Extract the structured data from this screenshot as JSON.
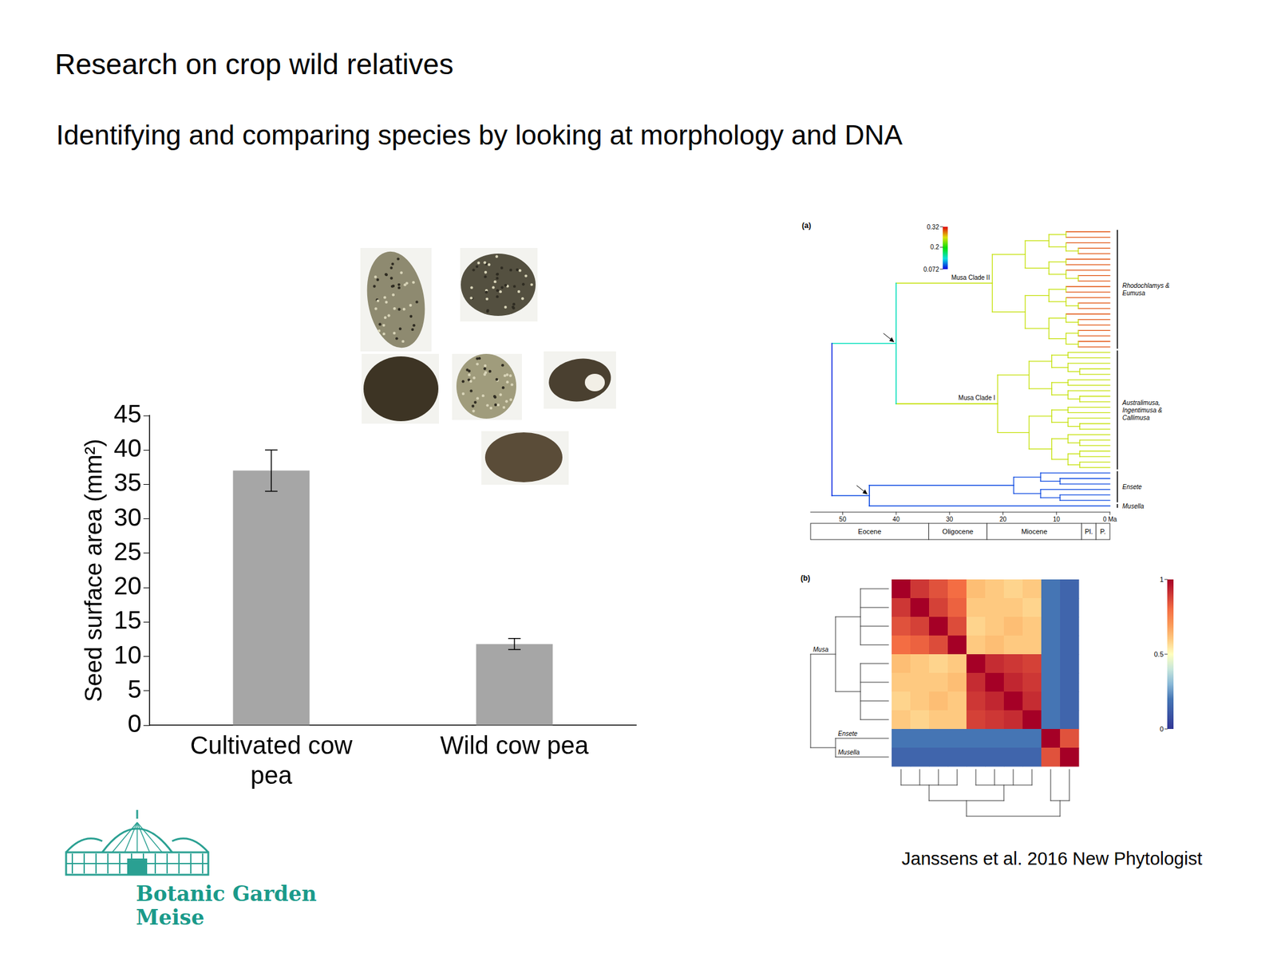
{
  "slide": {
    "title": "Research on crop wild relatives",
    "subtitle": "Identifying and comparing species by looking at morphology and DNA",
    "citation": "Janssens et al. 2016 New Phytologist",
    "logo_text": [
      "Botanic Garden",
      "Meise"
    ]
  },
  "chart_data": {
    "type": "bar",
    "categories": [
      "Cultivated cow pea",
      "Wild cow pea"
    ],
    "values": [
      37,
      11.8
    ],
    "errors": [
      3,
      0.8
    ],
    "color": "#a6a6a6",
    "ylabel": "Seed surface area (mm²)",
    "ylim": [
      0,
      45
    ],
    "yticks": [
      0,
      5,
      10,
      15,
      20,
      25,
      30,
      35,
      40,
      45
    ],
    "grid": false
  },
  "figure": {
    "panel_a": {
      "letter": "(a)",
      "rate_colorbar": {
        "range": [
          0.072,
          0.32
        ],
        "ticks": [
          0.32,
          0.2,
          0.072
        ]
      },
      "time_axis": {
        "xlim": [
          56,
          0
        ],
        "xticks": [
          50,
          40,
          30,
          20,
          10,
          {
            "value": 0,
            "label": "0 Ma"
          }
        ]
      },
      "epochs": [
        {
          "label": "Eocene",
          "start": 56,
          "end": 33.9
        },
        {
          "label": "Oligocene",
          "start": 33.9,
          "end": 23
        },
        {
          "label": "Miocene",
          "start": 23,
          "end": 5.3
        },
        {
          "label": "Pl.",
          "start": 5.3,
          "end": 2.6
        },
        {
          "label": "P.",
          "start": 2.6,
          "end": 0
        }
      ],
      "tree": {
        "age": 52,
        "rate": 0.08,
        "children": [
          {
            "age": 40,
            "rate": 0.144,
            "arrow": true,
            "children": [
              {
                "label": "Musa Clade II",
                "age": 22,
                "rate": 0.25,
                "tip_rate": 0.3,
                "tips": 22,
                "group": "Rhodochlamys & Eumusa"
              },
              {
                "label": "Musa Clade I",
                "age": 21,
                "rate": 0.25,
                "tip_rate": 0.25,
                "tips": 22,
                "group": "Australimusa, Ingentimusa & Callimusa"
              }
            ]
          },
          {
            "age": 45,
            "rate": 0.09,
            "arrow": true,
            "children": [
              {
                "age": 18,
                "rate": 0.09,
                "tip_rate": 0.09,
                "tips": 6,
                "group": "Ensete"
              },
              {
                "age": 0,
                "rate": 0.09,
                "tip_rate": 0.09,
                "tips": 1,
                "group": "Musella"
              }
            ]
          }
        ]
      }
    },
    "panel_b": {
      "letter": "(b)",
      "colorbar": {
        "range": [
          0,
          1
        ],
        "ticks": [
          1,
          0.5,
          0
        ]
      },
      "matrix": [
        [
          1,
          0.9,
          0.85,
          0.8,
          0.62,
          0.6,
          0.58,
          0.6,
          0.2,
          0.15
        ],
        [
          0.9,
          1,
          0.88,
          0.82,
          0.6,
          0.6,
          0.6,
          0.58,
          0.2,
          0.15
        ],
        [
          0.85,
          0.88,
          1,
          0.86,
          0.58,
          0.6,
          0.62,
          0.6,
          0.2,
          0.15
        ],
        [
          0.8,
          0.82,
          0.86,
          1,
          0.6,
          0.62,
          0.6,
          0.6,
          0.2,
          0.15
        ],
        [
          0.62,
          0.6,
          0.58,
          0.6,
          1,
          0.92,
          0.9,
          0.88,
          0.2,
          0.15
        ],
        [
          0.6,
          0.6,
          0.6,
          0.62,
          0.92,
          1,
          0.93,
          0.9,
          0.2,
          0.15
        ],
        [
          0.58,
          0.6,
          0.62,
          0.6,
          0.9,
          0.93,
          1,
          0.92,
          0.2,
          0.15
        ],
        [
          0.6,
          0.58,
          0.6,
          0.6,
          0.88,
          0.9,
          0.92,
          1,
          0.2,
          0.15
        ],
        [
          0.2,
          0.2,
          0.2,
          0.2,
          0.2,
          0.2,
          0.2,
          0.2,
          1,
          0.85
        ],
        [
          0.15,
          0.15,
          0.15,
          0.15,
          0.15,
          0.15,
          0.15,
          0.15,
          0.85,
          1
        ]
      ],
      "dendrogram": [
        [
          [
            0,
            1,
            2,
            3
          ],
          [
            4,
            5,
            6,
            7
          ]
        ],
        [
          8,
          9
        ]
      ],
      "dendrogram_labels": [
        {
          "label": "Musa",
          "rows": [
            0,
            7
          ]
        },
        {
          "label": "Ensete",
          "rows": [
            8,
            8
          ]
        },
        {
          "label": "Musella",
          "rows": [
            9,
            9
          ]
        }
      ]
    }
  }
}
